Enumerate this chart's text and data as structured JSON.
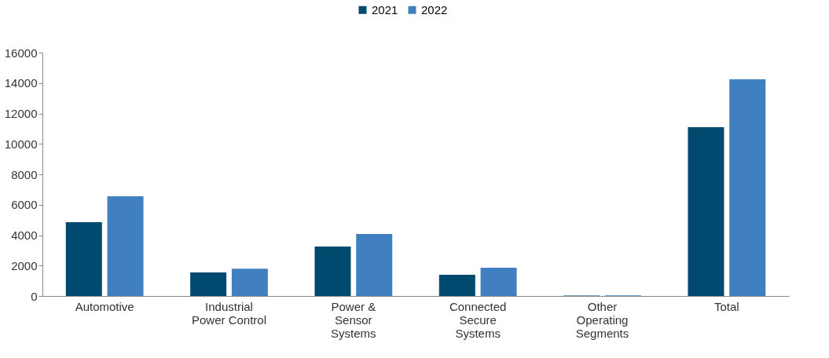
{
  "chart_data": {
    "type": "bar",
    "categories": [
      "Automotive",
      "Industrial\nPower Control",
      "Power &\nSensor\nSystems",
      "Connected\nSecure\nSystems",
      "Other\nOperating\nSegments",
      "Total"
    ],
    "series": [
      {
        "name": "2021",
        "color": "#004a70",
        "values": [
          4850,
          1550,
          3250,
          1390,
          30,
          11100
        ]
      },
      {
        "name": "2022",
        "color": "#4080c0",
        "values": [
          6550,
          1800,
          4080,
          1860,
          40,
          14250
        ]
      }
    ],
    "ylim": [
      0,
      16000
    ],
    "yticks": [
      0,
      2000,
      4000,
      6000,
      8000,
      10000,
      12000,
      14000,
      16000
    ],
    "grid": false,
    "legend": "top"
  }
}
